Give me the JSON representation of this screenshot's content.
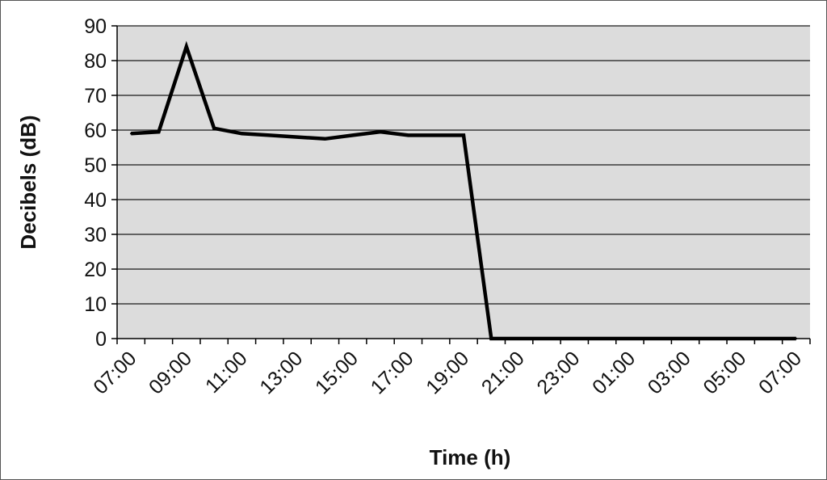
{
  "chart_data": {
    "type": "line",
    "title": "",
    "xlabel": "Time (h)",
    "ylabel": "Decibels (dB)",
    "ylim": [
      0,
      90
    ],
    "yticks": [
      0,
      10,
      20,
      30,
      40,
      50,
      60,
      70,
      80,
      90
    ],
    "grid": true,
    "legend": "none",
    "colors": {
      "plot_background": "#dcdcdc",
      "line": "#000000",
      "grid": "#1a1a1a"
    },
    "x_tick_labels": [
      "07:00",
      "09:00",
      "11:00",
      "13:00",
      "15:00",
      "17:00",
      "19:00",
      "21:00",
      "23:00",
      "01:00",
      "03:00",
      "05:00",
      "07:00"
    ],
    "x": [
      "07:00",
      "08:00",
      "09:00",
      "10:00",
      "11:00",
      "12:00",
      "13:00",
      "14:00",
      "15:00",
      "16:00",
      "17:00",
      "18:00",
      "19:00",
      "20:00",
      "21:00",
      "22:00",
      "23:00",
      "00:00",
      "01:00",
      "02:00",
      "03:00",
      "04:00",
      "05:00",
      "06:00",
      "07:00"
    ],
    "series": [
      {
        "values": [
          59,
          59.5,
          84,
          60.5,
          59,
          58.5,
          58,
          57.5,
          58.5,
          59.5,
          58.5,
          58.5,
          58.5,
          0,
          0,
          0,
          0,
          0,
          0,
          0,
          0,
          0,
          0,
          0,
          0
        ]
      }
    ]
  }
}
